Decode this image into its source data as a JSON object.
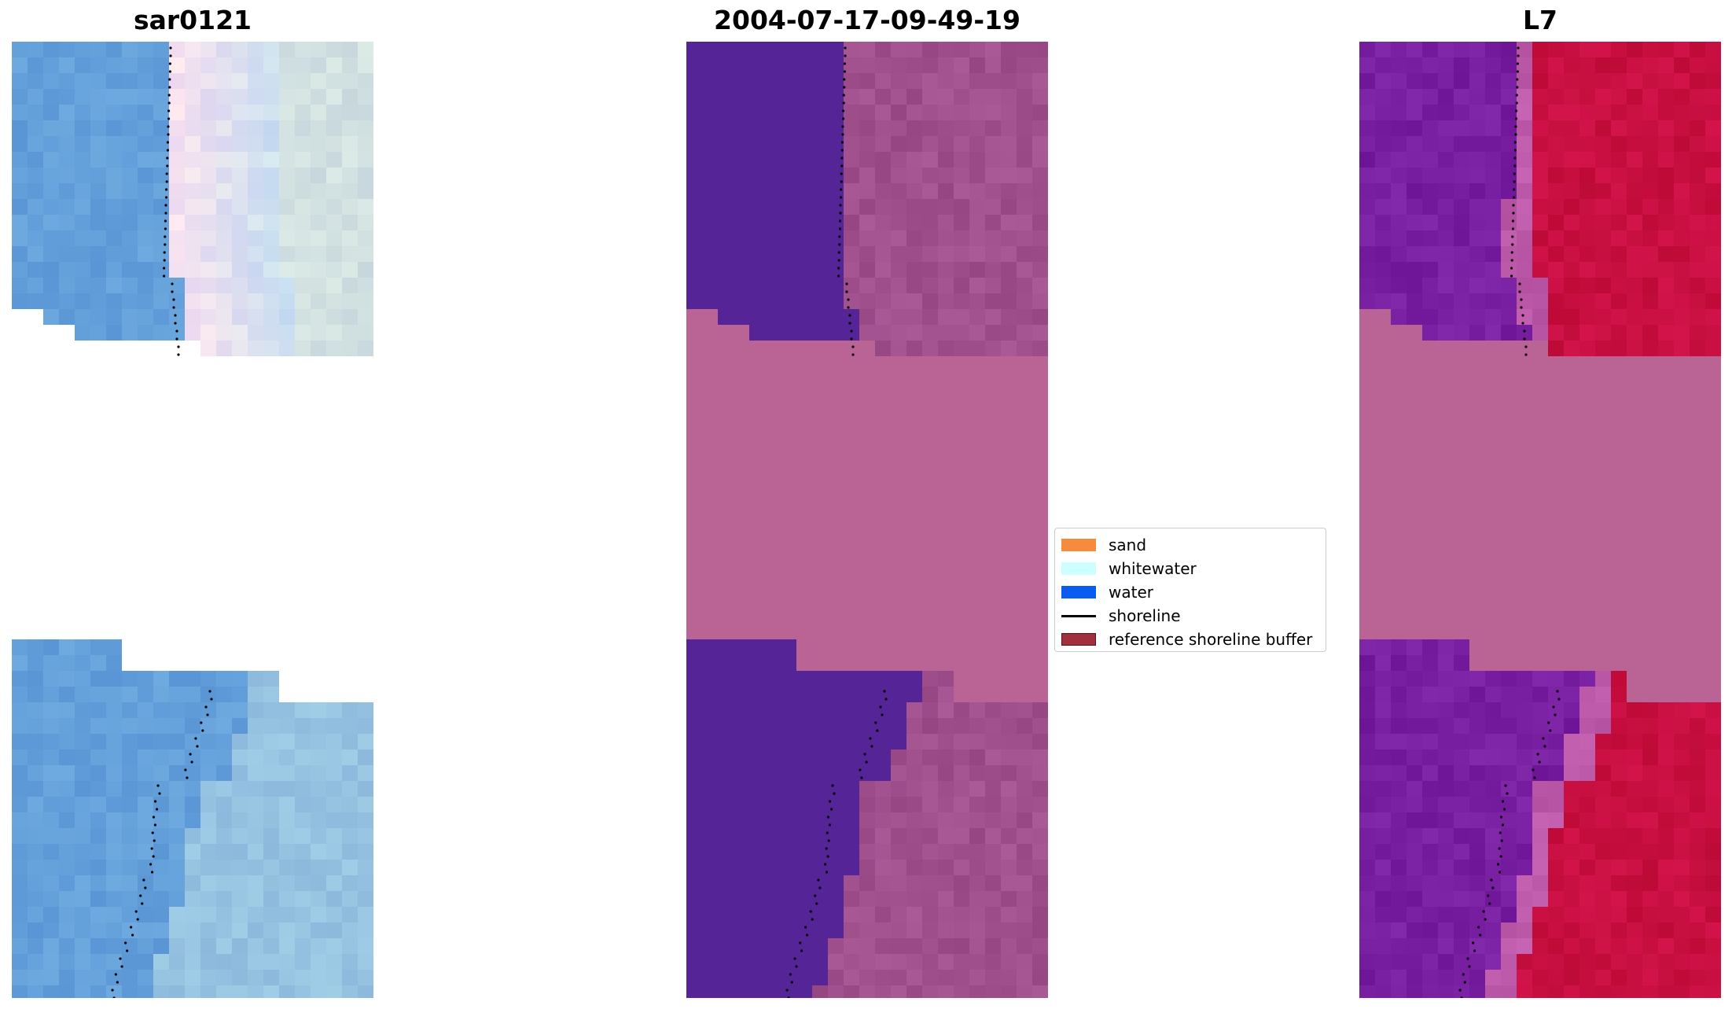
{
  "panels": [
    {
      "title": "sar0121",
      "kind": "rgb"
    },
    {
      "title": "2004-07-17-09-49-19",
      "kind": "classification"
    },
    {
      "title": "L7",
      "kind": "index"
    }
  ],
  "legend": {
    "items": [
      {
        "label": "sand",
        "color": "#f78b3d",
        "type": "patch"
      },
      {
        "label": "whitewater",
        "color": "#ccffff",
        "type": "patch"
      },
      {
        "label": "water",
        "color": "#0a5cf0",
        "type": "patch"
      },
      {
        "label": "shoreline",
        "color": "#000000",
        "type": "line"
      },
      {
        "label": "reference shoreline buffer",
        "color": "#a0303c",
        "type": "patch"
      }
    ]
  },
  "colors": {
    "water_purple": "#552496",
    "buffer_pink": "#ba6496",
    "index_red": "#c0073c",
    "index_purple": "#7a1f9a",
    "rgb_water": "#6aa3d8",
    "rgb_surf": "#d8ecf4"
  }
}
